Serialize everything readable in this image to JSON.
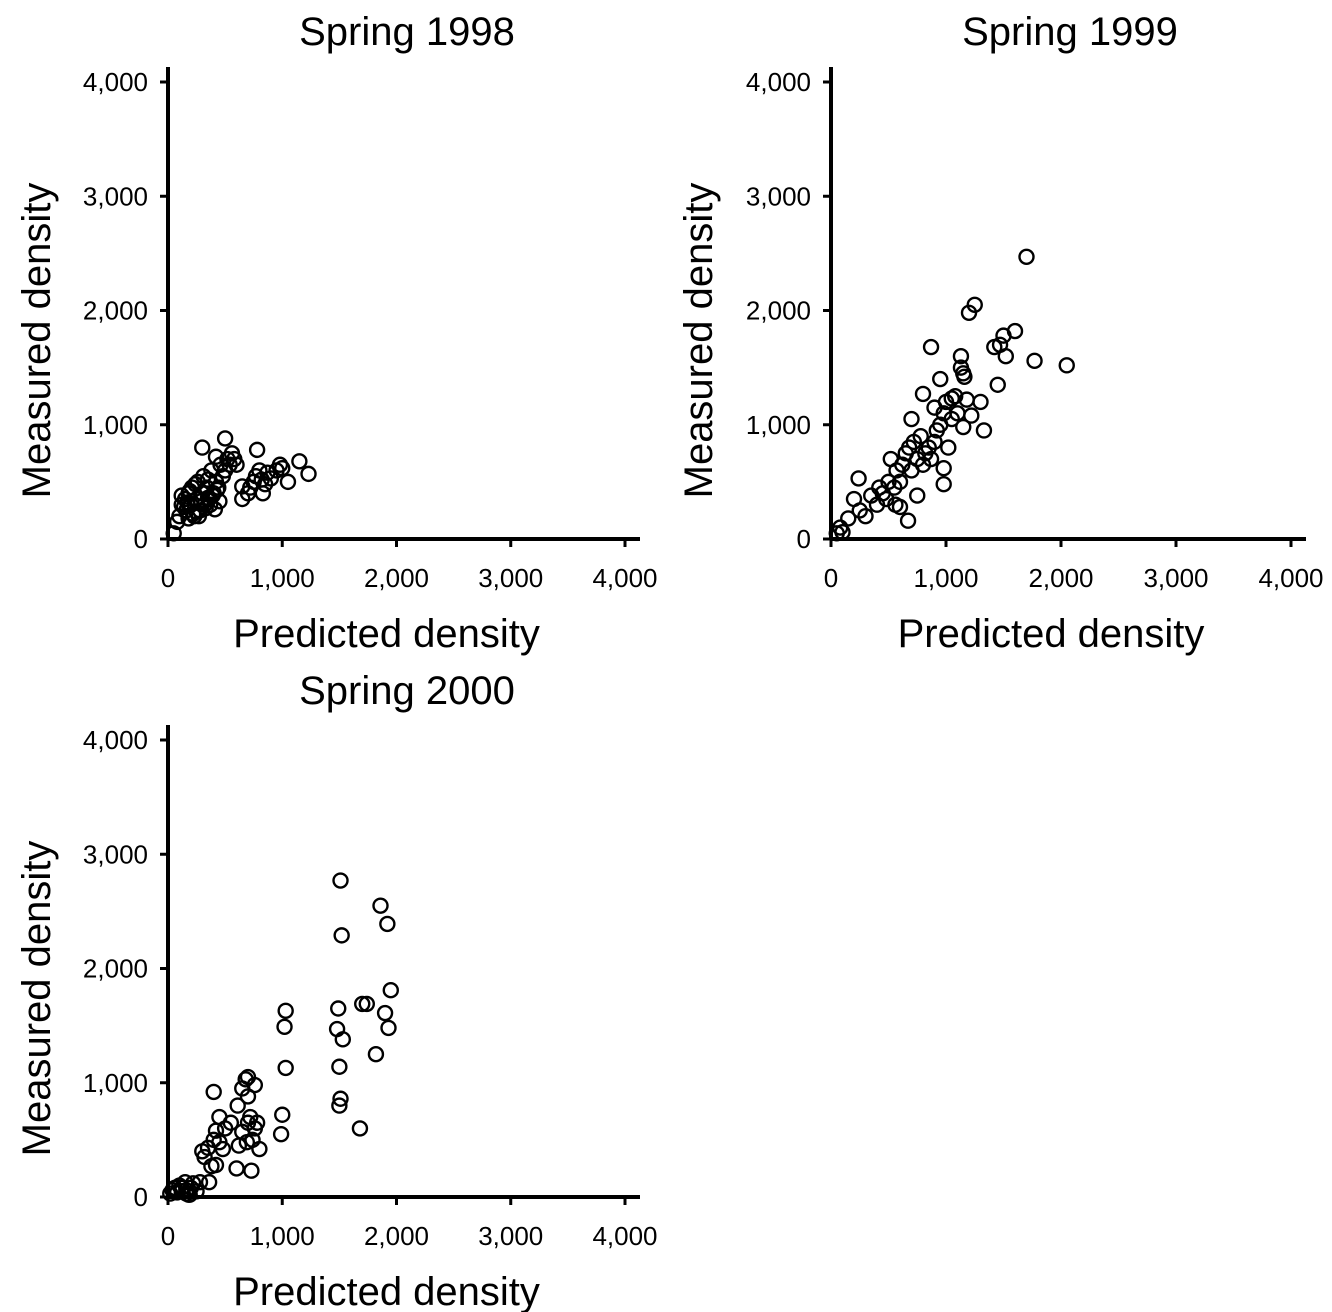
{
  "chart_data": [
    {
      "type": "scatter",
      "title": "Spring 1998",
      "xlabel": "Predicted density",
      "ylabel": "Measured density",
      "xlim": [
        0,
        4000
      ],
      "ylim": [
        0,
        4000
      ],
      "xticks": [
        "0",
        "1,000",
        "2,000",
        "3,000",
        "4,000"
      ],
      "yticks": [
        "0",
        "1,000",
        "2,000",
        "3,000",
        "4,000"
      ],
      "grid": false,
      "x": [
        50,
        80,
        100,
        120,
        150,
        160,
        180,
        200,
        210,
        230,
        250,
        260,
        280,
        300,
        310,
        320,
        340,
        360,
        380,
        400,
        420,
        440,
        460,
        480,
        500,
        520,
        540,
        560,
        580,
        600,
        650,
        700,
        720,
        750,
        770,
        800,
        820,
        850,
        870,
        900,
        950,
        980,
        1000,
        1050,
        1150,
        1230,
        120,
        140,
        170,
        190,
        220,
        240,
        270,
        290,
        330,
        350,
        370,
        390,
        410,
        430,
        450,
        300,
        180,
        250,
        350,
        420,
        500,
        650,
        780,
        830
      ],
      "y": [
        50,
        150,
        200,
        300,
        350,
        250,
        400,
        300,
        450,
        200,
        350,
        500,
        250,
        400,
        550,
        300,
        450,
        350,
        600,
        400,
        500,
        450,
        650,
        550,
        600,
        700,
        650,
        750,
        700,
        650,
        350,
        400,
        450,
        500,
        550,
        600,
        520,
        480,
        580,
        530,
        600,
        650,
        620,
        500,
        680,
        570,
        380,
        280,
        320,
        420,
        220,
        480,
        200,
        330,
        270,
        520,
        300,
        380,
        260,
        430,
        330,
        800,
        180,
        240,
        360,
        720,
        880,
        460,
        780,
        400
      ]
    },
    {
      "type": "scatter",
      "title": "Spring 1999",
      "xlabel": "Predicted density",
      "ylabel": "Measured density",
      "xlim": [
        0,
        4000
      ],
      "ylim": [
        0,
        4000
      ],
      "xticks": [
        "0",
        "1,000",
        "2,000",
        "3,000",
        "4,000"
      ],
      "yticks": [
        "0",
        "1,000",
        "2,000",
        "3,000",
        "4,000"
      ],
      "grid": false,
      "x": [
        50,
        80,
        100,
        150,
        200,
        250,
        300,
        350,
        400,
        420,
        450,
        480,
        500,
        520,
        550,
        570,
        600,
        620,
        650,
        680,
        700,
        720,
        750,
        780,
        800,
        820,
        850,
        870,
        900,
        920,
        950,
        980,
        1000,
        1020,
        1050,
        1080,
        1100,
        1130,
        1150,
        1180,
        1200,
        1220,
        1250,
        1300,
        1330,
        1450,
        1470,
        1500,
        1520,
        1600,
        1700,
        1770,
        2050,
        870,
        1130,
        1160,
        1420,
        950,
        980,
        980,
        670,
        750,
        560,
        600,
        240,
        800,
        700,
        900,
        1050,
        1150
      ],
      "y": [
        50,
        100,
        60,
        180,
        350,
        250,
        200,
        380,
        300,
        450,
        400,
        350,
        500,
        700,
        450,
        600,
        500,
        650,
        750,
        800,
        600,
        850,
        700,
        900,
        650,
        750,
        800,
        700,
        850,
        950,
        1000,
        1100,
        1200,
        800,
        1050,
        1250,
        1100,
        1500,
        1450,
        1220,
        1980,
        1080,
        2050,
        1200,
        950,
        1350,
        1700,
        1780,
        1600,
        1820,
        2470,
        1560,
        1520,
        1680,
        1600,
        1420,
        1680,
        1400,
        620,
        480,
        160,
        380,
        300,
        280,
        530,
        1270,
        1050,
        1150,
        1230,
        980
      ]
    },
    {
      "type": "scatter",
      "title": "Spring 2000",
      "xlabel": "Predicted density",
      "ylabel": "Measured density",
      "xlim": [
        0,
        4000
      ],
      "ylim": [
        0,
        4000
      ],
      "xticks": [
        "0",
        "1,000",
        "2,000",
        "3,000",
        "4,000"
      ],
      "yticks": [
        "0",
        "1,000",
        "2,000",
        "3,000",
        "4,000"
      ],
      "grid": false,
      "x": [
        20,
        40,
        60,
        80,
        100,
        120,
        150,
        160,
        180,
        200,
        220,
        250,
        280,
        300,
        320,
        350,
        380,
        400,
        400,
        420,
        450,
        450,
        480,
        500,
        550,
        600,
        620,
        650,
        650,
        680,
        700,
        700,
        720,
        740,
        760,
        780,
        800,
        990,
        1000,
        1020,
        1030,
        1030,
        1480,
        1490,
        1500,
        1500,
        1510,
        1510,
        1520,
        1530,
        1700,
        1740,
        1820,
        1860,
        1900,
        1920,
        1930,
        1950,
        1680,
        700,
        730,
        420,
        360,
        610,
        690,
        760,
        160,
        190,
        120
      ],
      "y": [
        30,
        60,
        80,
        40,
        100,
        50,
        130,
        60,
        20,
        80,
        120,
        50,
        130,
        400,
        350,
        430,
        270,
        500,
        920,
        580,
        480,
        700,
        420,
        600,
        650,
        250,
        450,
        570,
        950,
        1030,
        880,
        650,
        700,
        500,
        600,
        650,
        420,
        550,
        720,
        1490,
        1630,
        1130,
        1470,
        1650,
        1140,
        800,
        860,
        2770,
        2290,
        1380,
        1690,
        1690,
        1250,
        2550,
        1610,
        2390,
        1480,
        1810,
        600,
        1050,
        230,
        280,
        130,
        800,
        480,
        980,
        30,
        20,
        80
      ]
    }
  ]
}
